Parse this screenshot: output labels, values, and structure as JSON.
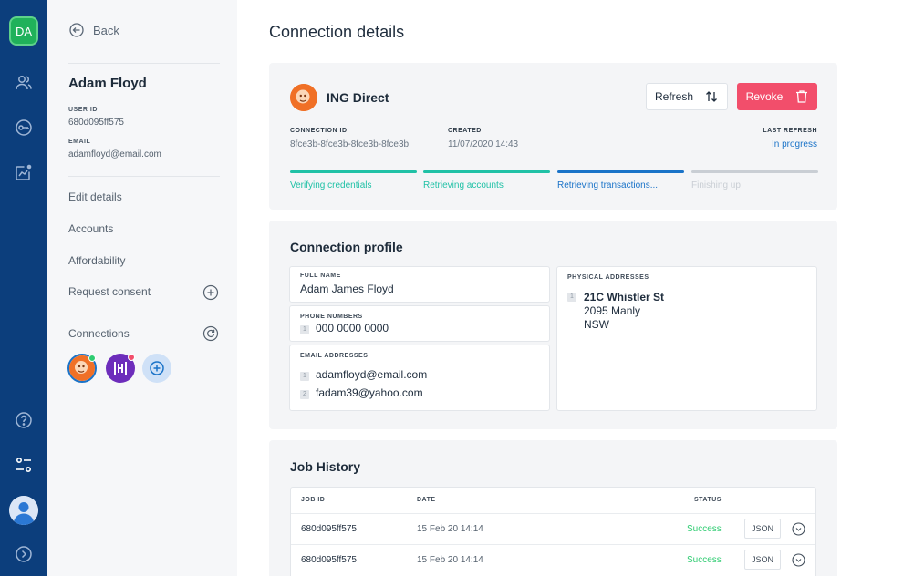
{
  "rail": {
    "logo": "DA",
    "icons": [
      "users-icon",
      "key-icon",
      "analytics-icon",
      "help-icon",
      "settings-icon",
      "profile-avatar",
      "expand-icon"
    ]
  },
  "side": {
    "back_label": "Back",
    "user": {
      "name": "Adam Floyd",
      "user_id_label": "USER ID",
      "user_id": "680d095ff575",
      "email_label": "EMAIL",
      "email": "adamfloyd@email.com"
    },
    "menu": [
      "Edit details",
      "Accounts",
      "Affordability",
      "Request consent"
    ],
    "connections_label": "Connections"
  },
  "main": {
    "title": "Connection details",
    "connection": {
      "bank_name": "ING Direct",
      "refresh_label": "Refresh",
      "revoke_label": "Revoke",
      "connection_id_label": "CONNECTION ID",
      "connection_id": "8fce3b-8fce3b-8fce3b-8fce3b",
      "created_label": "CREATED",
      "created": "11/07/2020 14:43",
      "last_refresh_label": "LAST REFRESH",
      "last_refresh": "In progress",
      "steps": [
        {
          "label": "Verifying credentials",
          "state": "done",
          "color": "#20c1a6"
        },
        {
          "label": "Retrieving accounts",
          "state": "done",
          "color": "#20c1a6"
        },
        {
          "label": "Retrieving transactions...",
          "state": "active",
          "color": "#1a73c8"
        },
        {
          "label": "Finishing up",
          "state": "pending",
          "color": "#c9ced4"
        }
      ]
    },
    "profile": {
      "title": "Connection profile",
      "full_name_label": "FULL NAME",
      "full_name": "Adam James Floyd",
      "phone_label": "PHONE NUMBERS",
      "phones": [
        {
          "index": "1",
          "value": "000 0000 0000"
        }
      ],
      "email_label": "EMAIL ADDRESSES",
      "emails": [
        {
          "index": "1",
          "value": "adamfloyd@email.com"
        },
        {
          "index": "2",
          "value": "fadam39@yahoo.com"
        }
      ],
      "address_label": "PHYSICAL ADDRESSES",
      "address": {
        "index": "1",
        "line1": "21C Whistler St",
        "line2": "2095 Manly",
        "line3": "NSW"
      }
    },
    "jobs": {
      "title": "Job History",
      "columns": [
        "JOB ID",
        "DATE",
        "STATUS"
      ],
      "rows": [
        {
          "job_id": "680d095ff575",
          "date": "15 Feb 20 14:14",
          "status": "Success",
          "action": "JSON"
        },
        {
          "job_id": "680d095ff575",
          "date": "15 Feb 20 14:14",
          "status": "Success",
          "action": "JSON"
        }
      ]
    }
  },
  "colors": {
    "rail": "#0c3e7c",
    "accent_green": "#20b15a",
    "revoke": "#f24e6b",
    "success": "#2ecc71",
    "progress_done": "#20c1a6",
    "progress_active": "#1a73c8"
  }
}
